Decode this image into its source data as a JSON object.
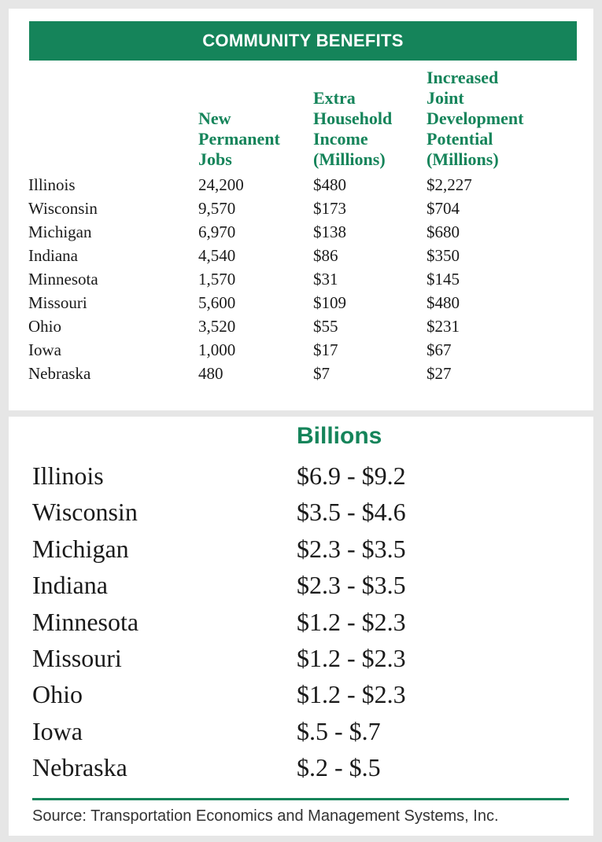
{
  "top_table": {
    "title": "COMMUNITY BENEFITS",
    "headers": [
      "",
      "New\nPermanent\nJobs",
      "Extra\nHousehold\nIncome\n(Millions)",
      "Increased\nJoint\nDevelopment\nPotential\n(Millions)"
    ],
    "rows": [
      [
        "Illinois",
        "24,200",
        "$480",
        "$2,227"
      ],
      [
        "Wisconsin",
        "9,570",
        "$173",
        "$704"
      ],
      [
        "Michigan",
        "6,970",
        "$138",
        "$680"
      ],
      [
        "Indiana",
        "4,540",
        "$86",
        "$350"
      ],
      [
        "Minnesota",
        "1,570",
        "$31",
        "$145"
      ],
      [
        "Missouri",
        "5,600",
        "$109",
        "$480"
      ],
      [
        "Ohio",
        "3,520",
        "$55",
        "$231"
      ],
      [
        "Iowa",
        "1,000",
        "$17",
        "$67"
      ],
      [
        "Nebraska",
        "480",
        "$7",
        "$27"
      ]
    ]
  },
  "bottom_table": {
    "header": "Billions",
    "rows": [
      [
        "Illinois",
        "$6.9 - $9.2"
      ],
      [
        "Wisconsin",
        "$3.5 - $4.6"
      ],
      [
        "Michigan",
        "$2.3 - $3.5"
      ],
      [
        "Indiana",
        "$2.3 - $3.5"
      ],
      [
        "Minnesota",
        "$1.2 - $2.3"
      ],
      [
        "Missouri",
        "$1.2 - $2.3"
      ],
      [
        "Ohio",
        "$1.2 - $2.3"
      ],
      [
        "Iowa",
        "$.5 - $.7"
      ],
      [
        "Nebraska",
        "$.2 - $.5"
      ]
    ]
  },
  "source": "Source: Transportation Economics and Management Systems, Inc.",
  "colors": {
    "accent": "#15845a",
    "background": "#e6e6e6",
    "panel": "#ffffff"
  }
}
